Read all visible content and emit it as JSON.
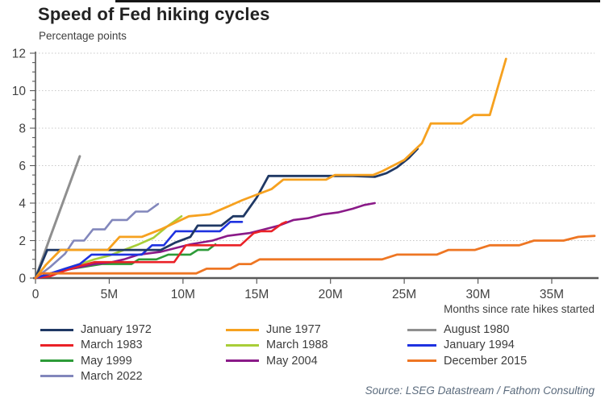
{
  "title": "Speed of Fed hiking cycles",
  "subtitle": "Percentage points",
  "source": "Source: LSEG Datastream / Fathom Consulting",
  "chart_data": {
    "type": "line",
    "title": "Speed of Fed hiking cycles",
    "ylabel": "Percentage points",
    "xlabel": "Months since rate hikes started",
    "xlim": [
      0,
      37.9
    ],
    "ylim": [
      0,
      12
    ],
    "grid": "horizontal dotted lines at every 2 percentage points",
    "legend_position": "bottom",
    "x_tick_values": [
      0,
      5,
      10,
      15,
      20,
      25,
      30,
      35
    ],
    "x_tick_labels": [
      "0",
      "5M",
      "10M",
      "15M",
      "20M",
      "25M",
      "30M",
      "35M"
    ],
    "y_tick_values": [
      0,
      2,
      4,
      6,
      8,
      10,
      12
    ],
    "y_minor_tick_step": 0.5,
    "series": [
      {
        "name": "August 1980",
        "slug": "august-1980",
        "color": "#8f8f8f",
        "width": 3,
        "points": [
          [
            0,
            0
          ],
          [
            1,
            2.2
          ],
          [
            2,
            4.35
          ],
          [
            3,
            6.5
          ]
        ]
      },
      {
        "name": "March 2022",
        "slug": "march-2022",
        "color": "#8287bc",
        "width": 2.6,
        "points": [
          [
            0,
            0
          ],
          [
            1,
            0.6
          ],
          [
            2,
            1.3
          ],
          [
            2.6,
            2.0
          ],
          [
            3.3,
            2.0
          ],
          [
            3.9,
            2.6
          ],
          [
            4.7,
            2.6
          ],
          [
            5.2,
            3.1
          ],
          [
            6.2,
            3.1
          ],
          [
            6.8,
            3.55
          ],
          [
            7.6,
            3.55
          ],
          [
            8.3,
            3.95
          ]
        ]
      },
      {
        "name": "March 1988",
        "slug": "march-1988",
        "color": "#a8ce38",
        "width": 2.6,
        "points": [
          [
            0,
            0
          ],
          [
            1,
            0.2
          ],
          [
            2,
            0.5
          ],
          [
            3,
            0.75
          ],
          [
            4,
            1.0
          ],
          [
            5,
            1.2
          ],
          [
            6,
            1.5
          ],
          [
            7,
            1.8
          ],
          [
            8,
            2.15
          ],
          [
            9,
            2.8
          ],
          [
            9.9,
            3.3
          ]
        ]
      },
      {
        "name": "May 1999",
        "slug": "may-1999",
        "color": "#2d9b38",
        "width": 2.6,
        "points": [
          [
            0,
            0
          ],
          [
            1,
            0.25
          ],
          [
            2.5,
            0.5
          ],
          [
            4.5,
            0.75
          ],
          [
            6.5,
            0.75
          ],
          [
            7,
            1.0
          ],
          [
            8.2,
            1.0
          ],
          [
            9,
            1.25
          ],
          [
            10.5,
            1.25
          ],
          [
            11,
            1.5
          ],
          [
            11.7,
            1.5
          ],
          [
            12.2,
            1.8
          ]
        ]
      },
      {
        "name": "May 2004",
        "slug": "may-2004",
        "color": "#8a1a88",
        "width": 2.6,
        "points": [
          [
            0,
            0
          ],
          [
            1,
            0.25
          ],
          [
            2.5,
            0.5
          ],
          [
            4,
            0.75
          ],
          [
            5.2,
            0.85
          ],
          [
            6,
            1.0
          ],
          [
            7,
            1.25
          ],
          [
            8.5,
            1.4
          ],
          [
            9.5,
            1.6
          ],
          [
            10.5,
            1.8
          ],
          [
            12,
            2.0
          ],
          [
            13,
            2.25
          ],
          [
            14.5,
            2.4
          ],
          [
            15.5,
            2.6
          ],
          [
            16.5,
            2.8
          ],
          [
            17.5,
            3.1
          ],
          [
            18.5,
            3.2
          ],
          [
            19.5,
            3.4
          ],
          [
            20.5,
            3.5
          ],
          [
            21.5,
            3.7
          ],
          [
            22.3,
            3.9
          ],
          [
            23,
            4.0
          ]
        ]
      },
      {
        "name": "March 1983",
        "slug": "march-1983",
        "color": "#ea2127",
        "width": 2.6,
        "points": [
          [
            0,
            0
          ],
          [
            1,
            0.1
          ],
          [
            2,
            0.4
          ],
          [
            3,
            0.65
          ],
          [
            4,
            0.85
          ],
          [
            9.4,
            0.85
          ],
          [
            10.2,
            1.75
          ],
          [
            13.9,
            1.75
          ],
          [
            14.8,
            2.4
          ],
          [
            15.3,
            2.5
          ],
          [
            16,
            2.5
          ],
          [
            16.7,
            2.9
          ],
          [
            17,
            3.0
          ]
        ]
      },
      {
        "name": "January 1994",
        "slug": "january-1994",
        "color": "#1e32e0",
        "width": 2.6,
        "points": [
          [
            0,
            0
          ],
          [
            1,
            0.25
          ],
          [
            2,
            0.5
          ],
          [
            3,
            0.75
          ],
          [
            3.8,
            1.25
          ],
          [
            7.2,
            1.25
          ],
          [
            7.9,
            1.75
          ],
          [
            8.7,
            1.75
          ],
          [
            9.5,
            2.5
          ],
          [
            12.5,
            2.5
          ],
          [
            13.2,
            3.0
          ],
          [
            14,
            3.0
          ]
        ]
      },
      {
        "name": "January 1972",
        "slug": "january-1972",
        "color": "#1f3864",
        "width": 2.8,
        "points": [
          [
            0,
            0
          ],
          [
            0.8,
            1.5
          ],
          [
            8.5,
            1.5
          ],
          [
            9.5,
            1.9
          ],
          [
            10.5,
            2.2
          ],
          [
            11,
            2.8
          ],
          [
            12.6,
            2.8
          ],
          [
            13.4,
            3.3
          ],
          [
            14.1,
            3.3
          ],
          [
            15,
            4.3
          ],
          [
            15.8,
            5.45
          ],
          [
            21.5,
            5.45
          ],
          [
            23,
            5.4
          ],
          [
            23.8,
            5.6
          ],
          [
            24.5,
            5.9
          ],
          [
            25.3,
            6.4
          ],
          [
            25.9,
            6.9
          ]
        ]
      },
      {
        "name": "June 1977",
        "slug": "june-1977",
        "color": "#f6a11f",
        "width": 2.8,
        "points": [
          [
            0,
            0
          ],
          [
            0.7,
            0.7
          ],
          [
            1.7,
            1.5
          ],
          [
            4.9,
            1.5
          ],
          [
            5.7,
            2.2
          ],
          [
            7.2,
            2.2
          ],
          [
            8.5,
            2.6
          ],
          [
            10.4,
            3.3
          ],
          [
            11.8,
            3.4
          ],
          [
            13,
            3.8
          ],
          [
            14,
            4.15
          ],
          [
            15,
            4.45
          ],
          [
            16,
            4.75
          ],
          [
            16.8,
            5.25
          ],
          [
            19.7,
            5.25
          ],
          [
            20.3,
            5.5
          ],
          [
            22.9,
            5.5
          ],
          [
            23.5,
            5.7
          ],
          [
            25,
            6.3
          ],
          [
            26.2,
            7.2
          ],
          [
            26.8,
            8.25
          ],
          [
            28.9,
            8.25
          ],
          [
            29.7,
            8.7
          ],
          [
            30.8,
            8.7
          ],
          [
            31.9,
            11.7
          ]
        ]
      },
      {
        "name": "December 2015",
        "slug": "december-2015",
        "color": "#ee7623",
        "width": 2.8,
        "points": [
          [
            0,
            0
          ],
          [
            0.4,
            0.25
          ],
          [
            10.9,
            0.25
          ],
          [
            11.6,
            0.5
          ],
          [
            13.2,
            0.5
          ],
          [
            13.8,
            0.75
          ],
          [
            14.6,
            0.75
          ],
          [
            15.2,
            1.0
          ],
          [
            23.5,
            1.0
          ],
          [
            24.5,
            1.25
          ],
          [
            27.2,
            1.25
          ],
          [
            28,
            1.5
          ],
          [
            29.8,
            1.5
          ],
          [
            30.8,
            1.75
          ],
          [
            32.8,
            1.75
          ],
          [
            33.8,
            2.0
          ],
          [
            35.8,
            2.0
          ],
          [
            36.8,
            2.2
          ],
          [
            37.9,
            2.25
          ]
        ]
      }
    ],
    "legend_columns": [
      [
        "January 1972",
        "March 1983",
        "May 1999",
        "March 2022"
      ],
      [
        "June 1977",
        "March 1988",
        "May 2004"
      ],
      [
        "August 1980",
        "January 1994",
        "December 2015"
      ]
    ]
  }
}
